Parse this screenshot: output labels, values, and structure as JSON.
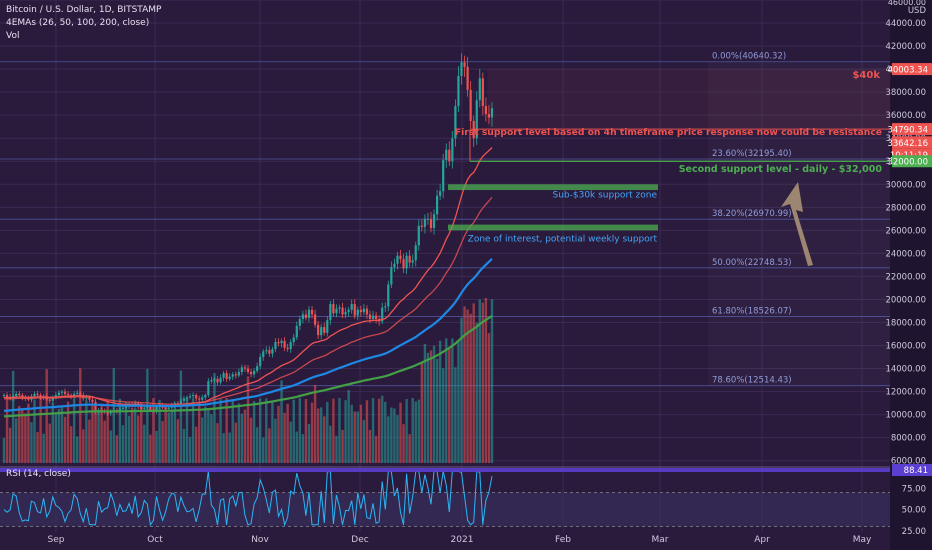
{
  "header": {
    "title": "Bitcoin / U.S. Dollar, 1D, BITSTAMP",
    "indicator": "4EMAs (26, 50, 100, 200, close)",
    "volume": "Vol",
    "rsi_label": "RSI (14, close)"
  },
  "chart_data": {
    "type": "candlestick",
    "title": "Bitcoin / U.S. Dollar, 1D, BITSTAMP",
    "xlabel": "",
    "ylabel": "USD",
    "ylim": [
      5800,
      46000
    ],
    "x_ticks": [
      "Sep",
      "Oct",
      "Nov",
      "Dec",
      "2021",
      "Feb",
      "Mar",
      "Apr",
      "May"
    ],
    "y_ticks": [
      6000,
      8000,
      10000,
      12000,
      14000,
      16000,
      18000,
      20000,
      22000,
      24000,
      26000,
      28000,
      30000,
      32000,
      34000,
      36000,
      38000,
      40000,
      42000,
      44000,
      46000
    ],
    "y_tick_labels": [
      "6000.00",
      "8000.00",
      "10000.00",
      "12000.00",
      "14000.00",
      "16000.00",
      "18000.00",
      "20000.00",
      "22000.00",
      "24000.00",
      "26000.00",
      "28000.00",
      "30000.00",
      "32000.00",
      "34000.00",
      "36000.00",
      "38000.00",
      "40000.00",
      "42000.00",
      "44000.00",
      "46000.00"
    ],
    "price_tags": [
      {
        "value": 40003.34,
        "label": "40003.34",
        "color": "#ef5350"
      },
      {
        "value": 34790.34,
        "label": "34790.34",
        "color": "#ef5350"
      },
      {
        "value": 33642.16,
        "label": "33642.16",
        "color": "#ef5350"
      },
      {
        "value": 32600,
        "label": "10:11:19",
        "color": "#ef5350"
      },
      {
        "value": 32000,
        "label": "32000.00",
        "color": "#4caf50"
      }
    ],
    "fib_levels": [
      {
        "value": 40640.32,
        "label": "0.00%(40640.32)"
      },
      {
        "value": 32195.4,
        "label": "23.60%(32195.40)"
      },
      {
        "value": 26970.99,
        "label": "38.20%(26970.99)"
      },
      {
        "value": 22748.53,
        "label": "50.00%(22748.53)"
      },
      {
        "value": 18526.07,
        "label": "61.80%(18526.07)"
      },
      {
        "value": 12514.43,
        "label": "78.60%(12514.43)"
      }
    ],
    "annotations": [
      {
        "text": "$40k",
        "value": 40003.34,
        "color": "#ef5350"
      },
      {
        "text": "First support level based on 4h timeframe price response now could be resistance",
        "value": 34790.34,
        "color": "#ef5350"
      },
      {
        "text": "Second support level - daily - $32,000",
        "value": 32000,
        "color": "#4caf50"
      },
      {
        "text": "Sub-$30k support zone",
        "value": 29200,
        "color": "#42a5f5"
      },
      {
        "text": "Zone of interest, potential weekly support",
        "value": 25400,
        "color": "#42a5f5"
      }
    ],
    "zones": [
      {
        "name": "Sub-$30k support zone",
        "low": 29500,
        "high": 30000,
        "color": "#4caf50"
      },
      {
        "name": "Zone of interest, potential weekly support",
        "low": 26000,
        "high": 26500,
        "color": "#4caf50"
      }
    ],
    "closes": [
      11700,
      11550,
      11400,
      11600,
      11800,
      11700,
      11500,
      11400,
      11300,
      11600,
      11800,
      11700,
      11500,
      11600,
      11300,
      11200,
      11500,
      11700,
      11900,
      12000,
      11800,
      11700,
      11600,
      11800,
      11900,
      11700,
      11400,
      11500,
      11300,
      11100,
      10200,
      10400,
      10300,
      10200,
      10100,
      10300,
      10400,
      10300,
      10500,
      10600,
      10700,
      10900,
      10800,
      11000,
      10700,
      10500,
      10600,
      10700,
      10400,
      10300,
      10700,
      10800,
      10600,
      10500,
      10600,
      10800,
      11000,
      10900,
      11200,
      11400,
      11500,
      11600,
      11700,
      11400,
      11300,
      11500,
      11700,
      12900,
      13000,
      13100,
      12800,
      13200,
      13600,
      13100,
      13300,
      13500,
      13400,
      13700,
      14100,
      14000,
      13700,
      13500,
      13800,
      14200,
      15000,
      15500,
      15600,
      15300,
      15700,
      16300,
      16200,
      16400,
      15800,
      15700,
      16300,
      16700,
      17700,
      18300,
      18700,
      18400,
      19100,
      18700,
      17800,
      16900,
      17600,
      17100,
      18200,
      19600,
      18800,
      19200,
      19300,
      18700,
      18900,
      19100,
      19600,
      18600,
      19100,
      18900,
      19200,
      18700,
      18300,
      18600,
      18300,
      18100,
      19300,
      19400,
      21300,
      22800,
      23100,
      23800,
      23500,
      22700,
      23800,
      23200,
      23400,
      24700,
      26400,
      26300,
      27000,
      27000,
      26200,
      27400,
      29000,
      29400,
      32100,
      33000,
      32000,
      34000,
      36800,
      39400,
      40600,
      40200,
      38200,
      35500,
      34000,
      37300,
      39200,
      36800,
      36100,
      35800,
      36600
    ],
    "emas": [
      {
        "name": "EMA 26",
        "color": "#ef5350"
      },
      {
        "name": "EMA 50",
        "color": "#ef5350"
      },
      {
        "name": "EMA 100",
        "color": "#1e88e5"
      },
      {
        "name": "EMA 200",
        "color": "#43a047"
      }
    ],
    "rsi": {
      "label": "RSI (14, close)",
      "current": "88.41",
      "ticks": [
        "75.00",
        "50.00",
        "25.00"
      ],
      "overbought": 70,
      "oversold": 30
    },
    "grid": true,
    "legend_position": "top-left"
  },
  "colors": {
    "background": "#2a1b3d",
    "up": "#26a69a",
    "down": "#ef5350",
    "grid": "#3a2a52",
    "text": "#cfc8dc"
  }
}
